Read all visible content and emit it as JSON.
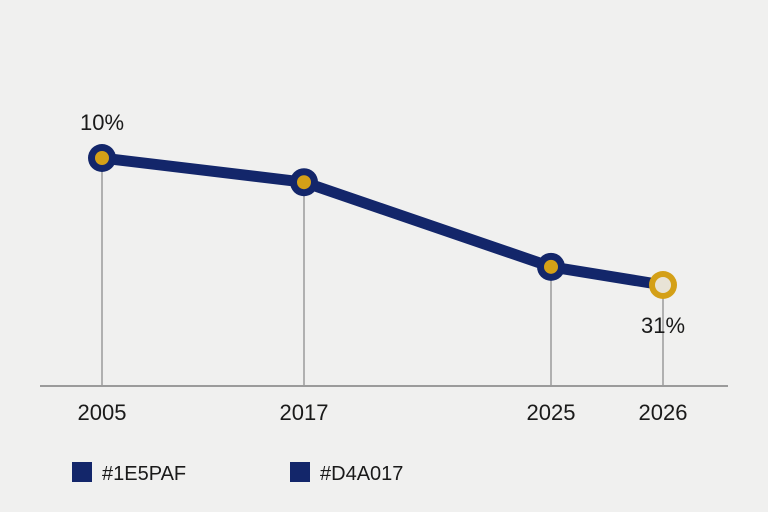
{
  "colors": {
    "line": "#13266a",
    "marker_fill": "#d4a017",
    "last_marker_ring": "#d4a017",
    "last_marker_fill": "#e8e3d6",
    "drop_line": "#9b9b9b",
    "axis": "#9b9b9b"
  },
  "chart_data": {
    "type": "line",
    "title": "",
    "xlabel": "",
    "ylabel": "",
    "categories": [
      "2005",
      "2017",
      "2025",
      "2026"
    ],
    "x": [
      2005,
      2017,
      2025,
      2026
    ],
    "series": [
      {
        "values": [
          10,
          14,
          28,
          31
        ]
      }
    ],
    "data_labels": [
      {
        "index": 0,
        "text": "10%"
      },
      {
        "index": 3,
        "text": "31%"
      }
    ],
    "tick_labels": [
      "2005",
      "2017",
      "2025",
      "2026"
    ],
    "legend": [
      {
        "label": "#1E5PAF",
        "color": "#13266a"
      },
      {
        "label": "#D4A017",
        "color": "#13266a"
      }
    ],
    "legend_position": "bottom-left",
    "grid": false
  }
}
